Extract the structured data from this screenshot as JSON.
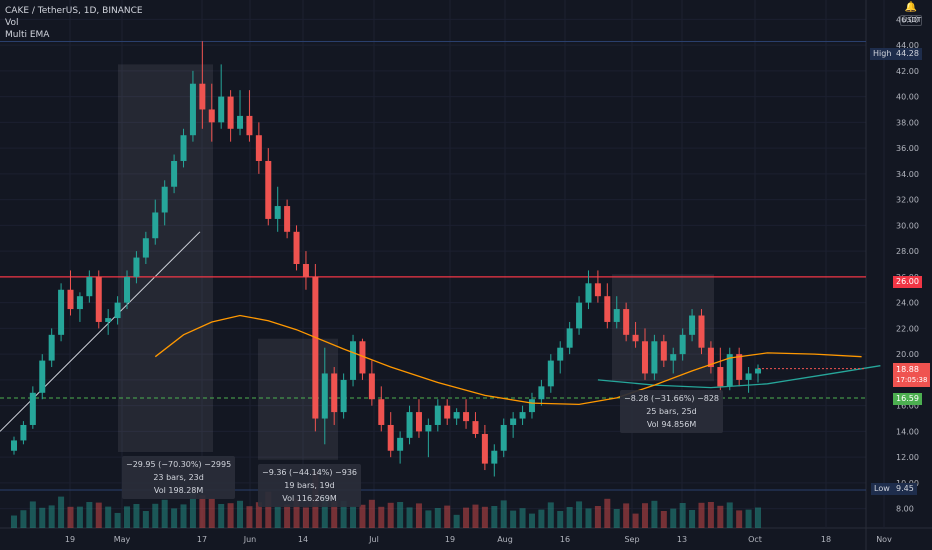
{
  "legend": {
    "symbol": "CAKE / TetherUS, 1D, BINANCE",
    "vol": "Vol",
    "ema": "Multi EMA"
  },
  "top_right": {
    "icon": "bell-icon",
    "currency": "USDT"
  },
  "price_axis": {
    "ticks": [
      "46.00",
      "44.00",
      "42.00",
      "40.00",
      "38.00",
      "36.00",
      "34.00",
      "32.00",
      "30.00",
      "28.00",
      "26.00",
      "24.00",
      "22.00",
      "20.00",
      "18.00",
      "16.00",
      "14.00",
      "12.00",
      "10.00",
      "8.00"
    ]
  },
  "time_axis": {
    "ticks": [
      "19",
      "May",
      "17",
      "Jun",
      "14",
      "Jul",
      "19",
      "Aug",
      "16",
      "Sep",
      "13",
      "Oct",
      "18",
      "Nov"
    ]
  },
  "markers": {
    "high": {
      "label": "High",
      "value": "44.28"
    },
    "low": {
      "label": "Low",
      "value": "9.45"
    },
    "resistance": {
      "value": "26.00"
    },
    "support": {
      "value": "16.59"
    },
    "last_price": {
      "value": "18.88",
      "countdown": "17:05:38"
    }
  },
  "measurements": [
    {
      "line1": "−29.95 (−70.30%) −2995",
      "line2": "23 bars, 23d",
      "line3": "Vol 198.28M"
    },
    {
      "line1": "−9.36 (−44.14%) −936",
      "line2": "19 bars, 19d",
      "line3": "Vol 116.269M"
    },
    {
      "line1": "−8.28 (−31.66%) −828",
      "line2": "25 bars, 25d",
      "line3": "Vol 94.856M"
    }
  ],
  "colors": {
    "background": "#131722",
    "up": "#26a69a",
    "down": "#ef5350",
    "resistance": "#f23645",
    "support": "#4caf50",
    "ema_fast": "#ff9800",
    "ema_slow": "#26a69a",
    "high_tag": "#1e2d4c"
  },
  "chart_data": {
    "type": "candlestick",
    "symbol": "CAKE / TetherUS",
    "interval": "1D",
    "approx_ohlc": [
      [
        12.5,
        13.6,
        12.2,
        13.3
      ],
      [
        13.3,
        14.8,
        13.0,
        14.5
      ],
      [
        14.5,
        17.5,
        14.2,
        17.0
      ],
      [
        17.0,
        20.0,
        16.5,
        19.5
      ],
      [
        19.5,
        22.0,
        19.0,
        21.5
      ],
      [
        21.5,
        25.5,
        21.0,
        25.0
      ],
      [
        25.0,
        26.5,
        23.0,
        23.5
      ],
      [
        23.5,
        24.8,
        22.5,
        24.5
      ],
      [
        24.5,
        26.5,
        24.0,
        26.0
      ],
      [
        26.0,
        26.5,
        22.0,
        22.5
      ],
      [
        22.5,
        23.5,
        21.5,
        22.8
      ],
      [
        22.8,
        24.5,
        22.3,
        24.0
      ],
      [
        24.0,
        26.5,
        23.5,
        26.0
      ],
      [
        26.0,
        28.0,
        25.5,
        27.5
      ],
      [
        27.5,
        29.5,
        27.0,
        29.0
      ],
      [
        29.0,
        32.0,
        28.5,
        31.0
      ],
      [
        31.0,
        33.5,
        30.0,
        33.0
      ],
      [
        33.0,
        35.5,
        32.5,
        35.0
      ],
      [
        35.0,
        37.5,
        34.5,
        37.0
      ],
      [
        37.0,
        42.0,
        36.5,
        41.0
      ],
      [
        41.0,
        44.3,
        37.5,
        39.0
      ],
      [
        39.0,
        41.0,
        36.5,
        38.0
      ],
      [
        38.0,
        42.5,
        37.5,
        40.0
      ],
      [
        40.0,
        40.5,
        36.5,
        37.5
      ],
      [
        37.5,
        40.5,
        37.0,
        38.5
      ],
      [
        38.5,
        40.5,
        36.5,
        37.0
      ],
      [
        37.0,
        38.0,
        34.0,
        35.0
      ],
      [
        35.0,
        36.0,
        30.0,
        30.5
      ],
      [
        30.5,
        33.0,
        29.5,
        31.5
      ],
      [
        31.5,
        32.0,
        29.0,
        29.5
      ],
      [
        29.5,
        30.0,
        26.5,
        27.0
      ],
      [
        27.0,
        28.0,
        25.0,
        26.0
      ],
      [
        26.0,
        27.0,
        14.0,
        15.0
      ],
      [
        15.0,
        20.5,
        13.0,
        18.5
      ],
      [
        18.5,
        19.0,
        14.5,
        15.5
      ],
      [
        15.5,
        18.5,
        15.0,
        18.0
      ],
      [
        18.0,
        21.5,
        17.5,
        21.0
      ],
      [
        21.0,
        21.2,
        18.0,
        18.5
      ],
      [
        18.5,
        19.5,
        16.0,
        16.5
      ],
      [
        16.5,
        17.5,
        14.0,
        14.5
      ],
      [
        14.5,
        15.5,
        12.0,
        12.5
      ],
      [
        12.5,
        14.0,
        11.5,
        13.5
      ],
      [
        13.5,
        16.0,
        13.0,
        15.5
      ],
      [
        15.5,
        16.5,
        13.5,
        14.0
      ],
      [
        14.0,
        15.0,
        12.0,
        14.5
      ],
      [
        14.5,
        16.5,
        14.0,
        16.0
      ],
      [
        16.0,
        16.5,
        14.5,
        15.0
      ],
      [
        15.0,
        15.8,
        14.5,
        15.5
      ],
      [
        15.5,
        16.5,
        14.2,
        14.8
      ],
      [
        14.8,
        15.5,
        13.5,
        13.8
      ],
      [
        13.8,
        14.5,
        11.0,
        11.5
      ],
      [
        11.5,
        13.0,
        10.5,
        12.5
      ],
      [
        12.5,
        15.0,
        12.0,
        14.5
      ],
      [
        14.5,
        15.5,
        13.5,
        15.0
      ],
      [
        15.0,
        16.0,
        14.5,
        15.5
      ],
      [
        15.5,
        17.0,
        15.0,
        16.5
      ],
      [
        16.5,
        18.0,
        16.0,
        17.5
      ],
      [
        17.5,
        20.0,
        17.0,
        19.5
      ],
      [
        19.5,
        21.0,
        18.5,
        20.5
      ],
      [
        20.5,
        22.5,
        20.0,
        22.0
      ],
      [
        22.0,
        24.5,
        21.5,
        24.0
      ],
      [
        24.0,
        26.5,
        23.5,
        25.5
      ],
      [
        25.5,
        26.5,
        24.0,
        24.5
      ],
      [
        24.5,
        25.5,
        22.0,
        22.5
      ],
      [
        22.5,
        24.5,
        22.0,
        23.5
      ],
      [
        23.5,
        24.0,
        21.0,
        21.5
      ],
      [
        21.5,
        22.5,
        20.5,
        21.0
      ],
      [
        21.0,
        22.0,
        18.0,
        18.5
      ],
      [
        18.5,
        21.5,
        18.0,
        21.0
      ],
      [
        21.0,
        21.5,
        19.0,
        19.5
      ],
      [
        19.5,
        20.5,
        18.5,
        20.0
      ],
      [
        20.0,
        22.0,
        19.5,
        21.5
      ],
      [
        21.5,
        23.5,
        21.0,
        23.0
      ],
      [
        23.0,
        23.5,
        20.0,
        20.5
      ],
      [
        20.5,
        21.0,
        18.5,
        19.0
      ],
      [
        19.0,
        20.5,
        17.0,
        17.5
      ],
      [
        17.5,
        20.5,
        17.2,
        20.0
      ],
      [
        20.0,
        20.5,
        17.5,
        18.0
      ],
      [
        18.0,
        19.0,
        17.0,
        18.5
      ],
      [
        18.5,
        19.2,
        17.8,
        18.88
      ]
    ],
    "y_range": [
      6.5,
      47.5
    ],
    "resistance_line": 26.0,
    "support_line": 16.59,
    "high": 44.28,
    "low": 9.45,
    "last": 18.88,
    "ema_fast_approx": [
      [
        15,
        19.8
      ],
      [
        18,
        21.5
      ],
      [
        21,
        22.5
      ],
      [
        24,
        23.0
      ],
      [
        27,
        22.6
      ],
      [
        30,
        21.9
      ],
      [
        35,
        20.4
      ],
      [
        40,
        19.0
      ],
      [
        45,
        17.8
      ],
      [
        50,
        16.8
      ],
      [
        55,
        16.2
      ],
      [
        60,
        16.1
      ],
      [
        64,
        16.6
      ],
      [
        68,
        17.6
      ],
      [
        72,
        18.7
      ],
      [
        76,
        19.7
      ],
      [
        80,
        20.1
      ],
      [
        85,
        20.0
      ],
      [
        90,
        19.8
      ]
    ],
    "ema_slow_approx": [
      [
        62,
        18.0
      ],
      [
        68,
        17.6
      ],
      [
        74,
        17.4
      ],
      [
        80,
        17.7
      ],
      [
        86,
        18.4
      ],
      [
        92,
        19.1
      ]
    ]
  }
}
